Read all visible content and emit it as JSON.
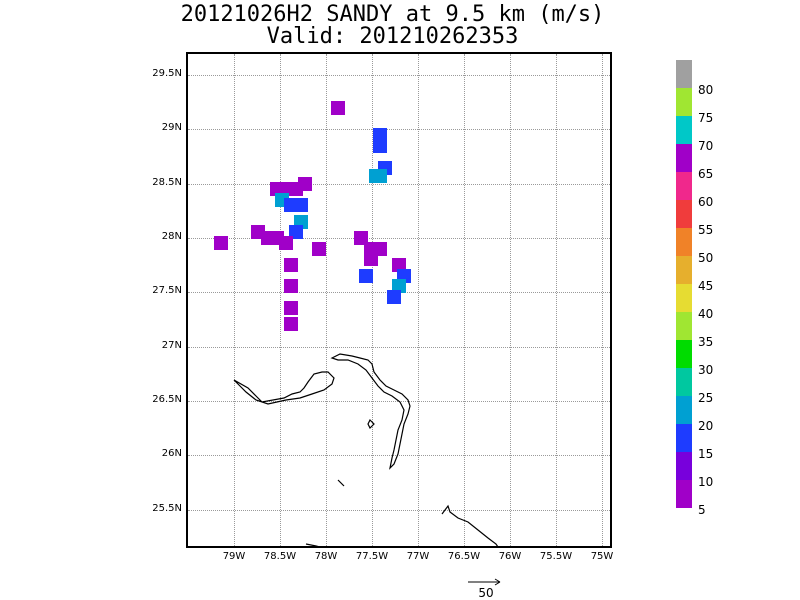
{
  "title": {
    "line1": "20121026H2 SANDY at 9.5 km (m/s)",
    "line2": "Valid: 201210262353"
  },
  "axes": {
    "y_labels": [
      "29.5N",
      "29N",
      "28.5N",
      "28N",
      "27.5N",
      "27N",
      "26.5N",
      "26N",
      "25.5N"
    ],
    "x_labels": [
      "79W",
      "78.5W",
      "78W",
      "77.5W",
      "77W",
      "76.5W",
      "76W",
      "75.5W",
      "75W"
    ]
  },
  "colorbar": {
    "labels": [
      "80",
      "75",
      "70",
      "65",
      "60",
      "55",
      "50",
      "45",
      "40",
      "35",
      "30",
      "25",
      "20",
      "15",
      "10",
      "5"
    ],
    "colors": [
      "#a0a0a0",
      "#a0e632",
      "#00c8c8",
      "#a000c8",
      "#f0288c",
      "#f03c3c",
      "#f08228",
      "#e6af2d",
      "#e6dc32",
      "#a0e632",
      "#00dc00",
      "#00c8a0",
      "#00a0d2",
      "#1e3cff",
      "#7800dc",
      "#a000c8"
    ]
  },
  "reference_vector": {
    "label": "50"
  },
  "chart_data": {
    "type": "heatmap",
    "title": "20121026H2 SANDY at 9.5 km (m/s)",
    "subtitle": "Valid: 201210262353",
    "units": "m/s",
    "xlim": [
      -79.5,
      -75
    ],
    "ylim": [
      25.15,
      29.7
    ],
    "grid": true,
    "colorbar_levels": [
      5,
      10,
      15,
      20,
      25,
      30,
      35,
      40,
      45,
      50,
      55,
      60,
      65,
      70,
      75,
      80
    ],
    "wind_cells": [
      {
        "lon": -77.9,
        "lat": 29.2,
        "speed": 5
      },
      {
        "lon": -77.45,
        "lat": 28.95,
        "speed": 12
      },
      {
        "lon": -77.45,
        "lat": 28.85,
        "speed": 12
      },
      {
        "lon": -77.4,
        "lat": 28.65,
        "speed": 12
      },
      {
        "lon": -77.5,
        "lat": 28.57,
        "speed": 17
      },
      {
        "lon": -77.45,
        "lat": 28.57,
        "speed": 17
      },
      {
        "lon": -78.55,
        "lat": 28.45,
        "speed": 5
      },
      {
        "lon": -78.45,
        "lat": 28.45,
        "speed": 5
      },
      {
        "lon": -78.35,
        "lat": 28.45,
        "speed": 5
      },
      {
        "lon": -78.25,
        "lat": 28.5,
        "speed": 5
      },
      {
        "lon": -78.5,
        "lat": 28.35,
        "speed": 17
      },
      {
        "lon": -78.4,
        "lat": 28.3,
        "speed": 12
      },
      {
        "lon": -78.3,
        "lat": 28.3,
        "speed": 12
      },
      {
        "lon": -78.3,
        "lat": 28.15,
        "speed": 17
      },
      {
        "lon": -78.35,
        "lat": 28.05,
        "speed": 12
      },
      {
        "lon": -79.15,
        "lat": 27.95,
        "speed": 5
      },
      {
        "lon": -78.75,
        "lat": 28.05,
        "speed": 5
      },
      {
        "lon": -78.65,
        "lat": 28.0,
        "speed": 5
      },
      {
        "lon": -78.55,
        "lat": 28.0,
        "speed": 5
      },
      {
        "lon": -78.45,
        "lat": 27.95,
        "speed": 5
      },
      {
        "lon": -78.4,
        "lat": 27.75,
        "speed": 5
      },
      {
        "lon": -78.4,
        "lat": 27.55,
        "speed": 5
      },
      {
        "lon": -78.4,
        "lat": 27.35,
        "speed": 5
      },
      {
        "lon": -78.4,
        "lat": 27.2,
        "speed": 5
      },
      {
        "lon": -78.1,
        "lat": 27.9,
        "speed": 5
      },
      {
        "lon": -77.65,
        "lat": 28.0,
        "speed": 5
      },
      {
        "lon": -77.55,
        "lat": 27.9,
        "speed": 5
      },
      {
        "lon": -77.45,
        "lat": 27.9,
        "speed": 5
      },
      {
        "lon": -77.55,
        "lat": 27.8,
        "speed": 5
      },
      {
        "lon": -77.6,
        "lat": 27.65,
        "speed": 12
      },
      {
        "lon": -77.25,
        "lat": 27.75,
        "speed": 5
      },
      {
        "lon": -77.2,
        "lat": 27.65,
        "speed": 12
      },
      {
        "lon": -77.25,
        "lat": 27.55,
        "speed": 17
      },
      {
        "lon": -77.3,
        "lat": 27.45,
        "speed": 12
      }
    ]
  }
}
